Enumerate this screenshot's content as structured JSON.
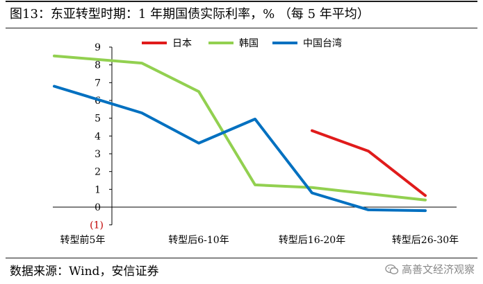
{
  "header": {
    "title": "图13：东亚转型时期：1 年期国债实际利率，%  （每 5 年平均）"
  },
  "footer": {
    "source": "数据来源：Wind，安信证券",
    "watermark": "高善文经济观察"
  },
  "chart_data": {
    "type": "line",
    "categories": [
      "转型前5年",
      "",
      "转型后6-10年",
      "",
      "转型后16-20年",
      "",
      "转型后26-30年"
    ],
    "x_tick_labels": [
      "转型前5年",
      "转型后6-10年",
      "转型后16-20年",
      "转型后26-30年"
    ],
    "ylim": [
      -1,
      9
    ],
    "yticks": [
      9,
      8,
      7,
      6,
      5,
      4,
      3,
      2,
      1,
      0
    ],
    "y_negative_label": "(1)",
    "y_negative_label_color": "#c00000",
    "legend_position": "top",
    "series": [
      {
        "name": "日本",
        "color": "#e01b1b",
        "values": [
          null,
          null,
          null,
          null,
          4.3,
          3.15,
          0.65
        ]
      },
      {
        "name": "韩国",
        "color": "#92d050",
        "values": [
          8.5,
          8.1,
          6.5,
          1.25,
          1.1,
          0.75,
          0.4
        ]
      },
      {
        "name": "中国台湾",
        "color": "#0070c0",
        "values": [
          6.8,
          5.3,
          3.6,
          4.95,
          0.8,
          -0.15,
          -0.2
        ]
      }
    ]
  }
}
